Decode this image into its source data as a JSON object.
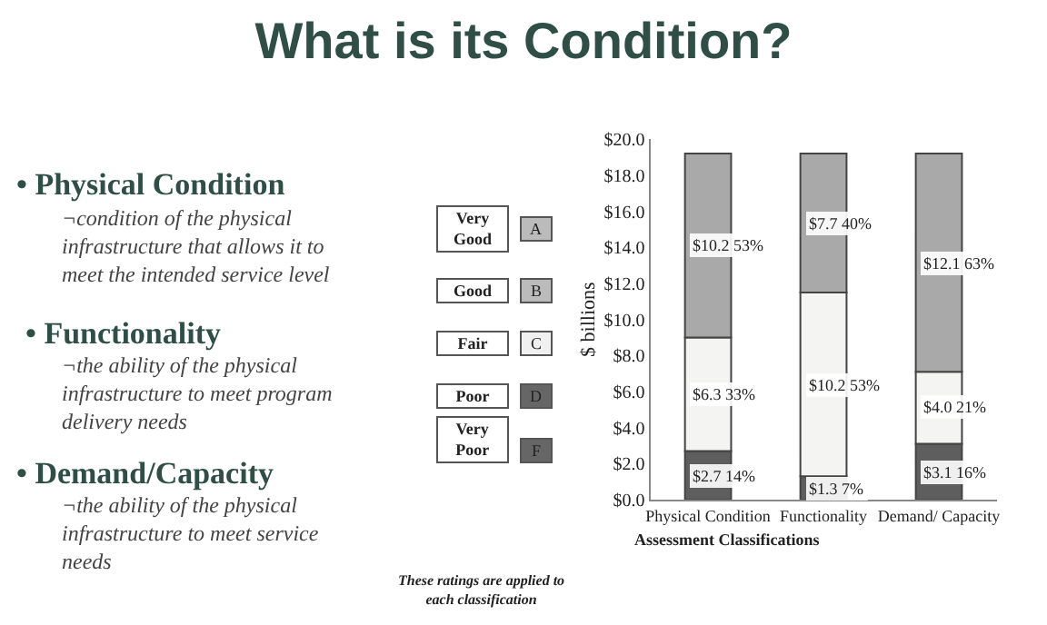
{
  "chart_data": {
    "type": "bar",
    "stacked": true,
    "title": "What is its Condition?",
    "categories": [
      "Physical Condition",
      "Functionality",
      "Demand/ Capacity"
    ],
    "xlabel": "Assessment Classifications",
    "ylabel": "$ billions",
    "series": [
      {
        "color": "#5e5e5e",
        "values": [
          2.7,
          1.3,
          3.1
        ],
        "value_labels": [
          "$2.7 14%",
          "$1.3 7%",
          "$3.1 16%"
        ]
      },
      {
        "color": "#f4f4f2",
        "values": [
          6.3,
          10.2,
          4.0
        ],
        "value_labels": [
          "$6.3 33%",
          "$10.2 53%",
          "$4.0 21%"
        ]
      },
      {
        "color": "#a9a9a9",
        "values": [
          10.2,
          7.7,
          12.1
        ],
        "value_labels": [
          "$10.2 53%",
          "$7.7 40%",
          "$12.1 63%"
        ]
      }
    ],
    "ylim": [
      0,
      20
    ],
    "yticks": [
      {
        "value": 0,
        "label": "$0.0"
      },
      {
        "value": 2,
        "label": "$2.0"
      },
      {
        "value": 4,
        "label": "$4.0"
      },
      {
        "value": 6,
        "label": "$6.0"
      },
      {
        "value": 8,
        "label": "$8.0"
      },
      {
        "value": 10,
        "label": "$10.0"
      },
      {
        "value": 12,
        "label": "$12.0"
      },
      {
        "value": 14,
        "label": "$14.0"
      },
      {
        "value": 16,
        "label": "$16.0"
      },
      {
        "value": 18,
        "label": "$18.0"
      },
      {
        "value": 20,
        "label": "$20.0"
      }
    ],
    "annotations": [
      "• Physical Condition",
      "¬condition of the physical\ninfrastructure that allows it to\nmeet the intended service level",
      "• Functionality",
      "¬the ability of the physical\ninfrastructure to meet program\ndelivery needs",
      "• Demand/Capacity",
      "¬the ability of the physical\ninfrastructure to meet service\nneeds",
      "Very\nGood",
      "A",
      "Good",
      "B",
      "Fair",
      "C",
      "Poor",
      "D",
      "Very\nPoor",
      "F",
      "These ratings are applied to\neach classification"
    ]
  }
}
